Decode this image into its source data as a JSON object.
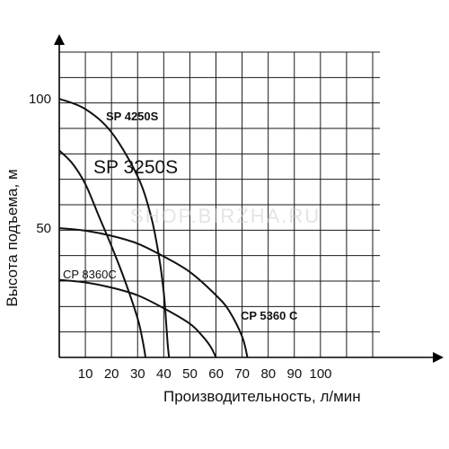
{
  "chart_data": {
    "type": "line",
    "xlabel": "Производительность, л/мин",
    "ylabel": "Высота подъема, м",
    "x_ticks": [
      "10",
      "20",
      "30",
      "40",
      "50",
      "60",
      "70",
      "80",
      "90",
      "100"
    ],
    "y_ticks": [
      "50",
      "100"
    ],
    "xlim": [
      0,
      120
    ],
    "ylim": [
      0,
      120
    ],
    "grid": true,
    "series": [
      {
        "name": "SP 4250S",
        "x": [
          0,
          10,
          20,
          30,
          35,
          38,
          40,
          41,
          41.5,
          42
        ],
        "y": [
          100,
          96,
          87,
          70,
          55,
          40,
          25,
          12,
          5,
          0
        ]
      },
      {
        "name": "SP 3250S",
        "x": [
          0,
          5,
          10,
          15,
          20,
          25,
          30,
          32,
          33
        ],
        "y": [
          80,
          75,
          67,
          55,
          43,
          30,
          15,
          6,
          0
        ]
      },
      {
        "name": "CP 5360 C",
        "x": [
          0,
          10,
          20,
          30,
          40,
          50,
          60,
          65,
          70,
          72
        ],
        "y": [
          50,
          49,
          47,
          44,
          39,
          33,
          24,
          18,
          8,
          0
        ]
      },
      {
        "name": "CP 8360C",
        "x": [
          0,
          10,
          20,
          30,
          40,
          50,
          55,
          58,
          60
        ],
        "y": [
          30,
          29,
          27,
          24,
          19,
          13,
          8,
          4,
          0
        ]
      }
    ]
  },
  "watermark": "SHOP.BIRZHA.RU"
}
